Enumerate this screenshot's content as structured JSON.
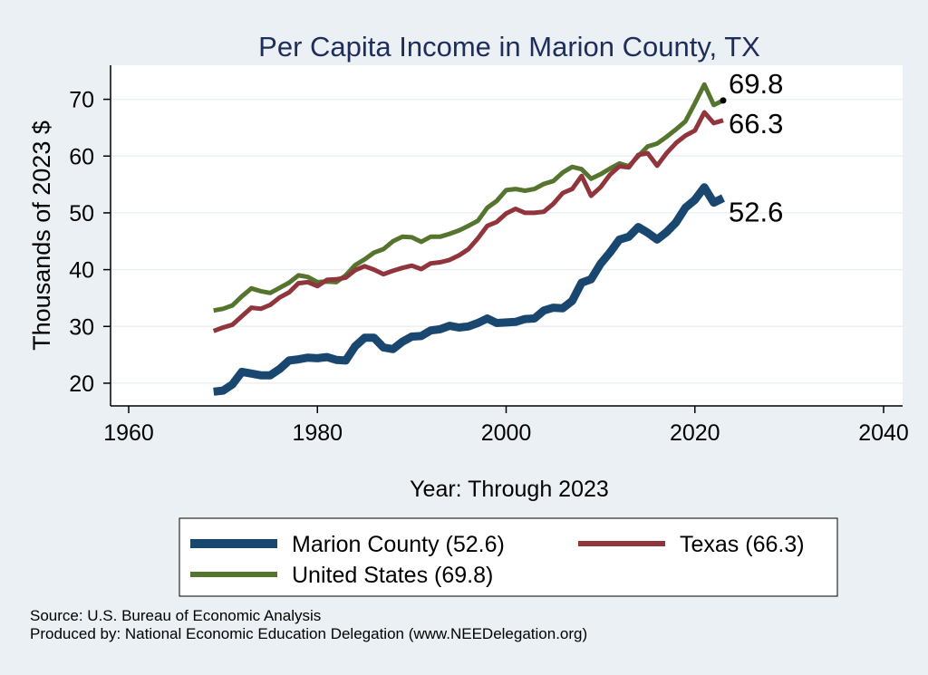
{
  "chart_data": {
    "type": "line",
    "title": "Per Capita Income in Marion County, TX",
    "xlabel": "Year: Through 2023",
    "ylabel": "Thousands of 2023 $",
    "xlim": [
      1960,
      2040
    ],
    "ylim": [
      16,
      76
    ],
    "xticks": [
      1960,
      1980,
      2000,
      2020,
      2040
    ],
    "yticks": [
      20,
      30,
      40,
      50,
      60,
      70
    ],
    "grid": true,
    "legend_position": "bottom",
    "x": [
      1969,
      1970,
      1971,
      1972,
      1973,
      1974,
      1975,
      1976,
      1977,
      1978,
      1979,
      1980,
      1981,
      1982,
      1983,
      1984,
      1985,
      1986,
      1987,
      1988,
      1989,
      1990,
      1991,
      1992,
      1993,
      1994,
      1995,
      1996,
      1997,
      1998,
      1999,
      2000,
      2001,
      2002,
      2003,
      2004,
      2005,
      2006,
      2007,
      2008,
      2009,
      2010,
      2011,
      2012,
      2013,
      2014,
      2015,
      2016,
      2017,
      2018,
      2019,
      2020,
      2021,
      2022,
      2023
    ],
    "series": [
      {
        "name": "Marion County",
        "legend_label": "Marion County (52.6)",
        "end_label": "52.6",
        "color": "#1a476f",
        "width": 9,
        "values": [
          18.5,
          18.7,
          19.8,
          22.0,
          21.7,
          21.4,
          21.4,
          22.5,
          24.0,
          24.2,
          24.5,
          24.4,
          24.6,
          24.1,
          24.0,
          26.5,
          28.0,
          28.0,
          26.3,
          26.0,
          27.3,
          28.2,
          28.3,
          29.3,
          29.5,
          30.1,
          29.8,
          30.0,
          30.6,
          31.4,
          30.6,
          30.7,
          30.8,
          31.3,
          31.4,
          32.8,
          33.3,
          33.2,
          34.5,
          37.7,
          38.3,
          41.0,
          43.0,
          45.3,
          45.8,
          47.5,
          46.5,
          45.3,
          46.6,
          48.3,
          50.9,
          52.3,
          54.5,
          51.8,
          52.6
        ]
      },
      {
        "name": "Texas",
        "legend_label": "Texas (66.3)",
        "end_label": "66.3",
        "color": "#90353b",
        "width": 5,
        "values": [
          29.2,
          29.8,
          30.3,
          31.8,
          33.3,
          33.1,
          33.8,
          35.1,
          36.0,
          37.6,
          37.8,
          37.1,
          38.2,
          38.3,
          38.6,
          39.9,
          40.6,
          40.0,
          39.2,
          39.8,
          40.3,
          40.7,
          40.1,
          41.1,
          41.3,
          41.7,
          42.5,
          43.6,
          45.5,
          47.7,
          48.4,
          49.9,
          50.7,
          50.0,
          50.0,
          50.2,
          51.6,
          53.5,
          54.2,
          56.5,
          53.0,
          54.5,
          56.7,
          58.2,
          58.0,
          60.2,
          60.5,
          58.3,
          60.5,
          62.3,
          63.6,
          64.5,
          67.7,
          65.8,
          66.3
        ]
      },
      {
        "name": "United States",
        "legend_label": "United States (69.8)",
        "end_label": "69.8",
        "color": "#55752f",
        "width": 5,
        "values": [
          32.8,
          33.1,
          33.7,
          35.3,
          36.7,
          36.2,
          35.9,
          36.8,
          37.7,
          39.0,
          38.7,
          37.8,
          37.9,
          37.8,
          39.0,
          40.8,
          41.8,
          43.0,
          43.6,
          45.0,
          45.8,
          45.7,
          44.9,
          45.8,
          45.8,
          46.3,
          46.9,
          47.7,
          48.6,
          50.9,
          52.1,
          54.0,
          54.2,
          53.9,
          54.2,
          55.1,
          55.6,
          57.1,
          58.1,
          57.7,
          56.0,
          56.8,
          57.8,
          58.7,
          58.2,
          60.0,
          61.7,
          62.2,
          63.4,
          64.7,
          66.1,
          69.3,
          72.6,
          69.0,
          69.8
        ]
      }
    ]
  },
  "footer": {
    "source": "Source: U.S. Bureau of Economic Analysis",
    "produced_by": "Produced by: National Economic Education Delegation (www.NEEDelegation.org)"
  }
}
